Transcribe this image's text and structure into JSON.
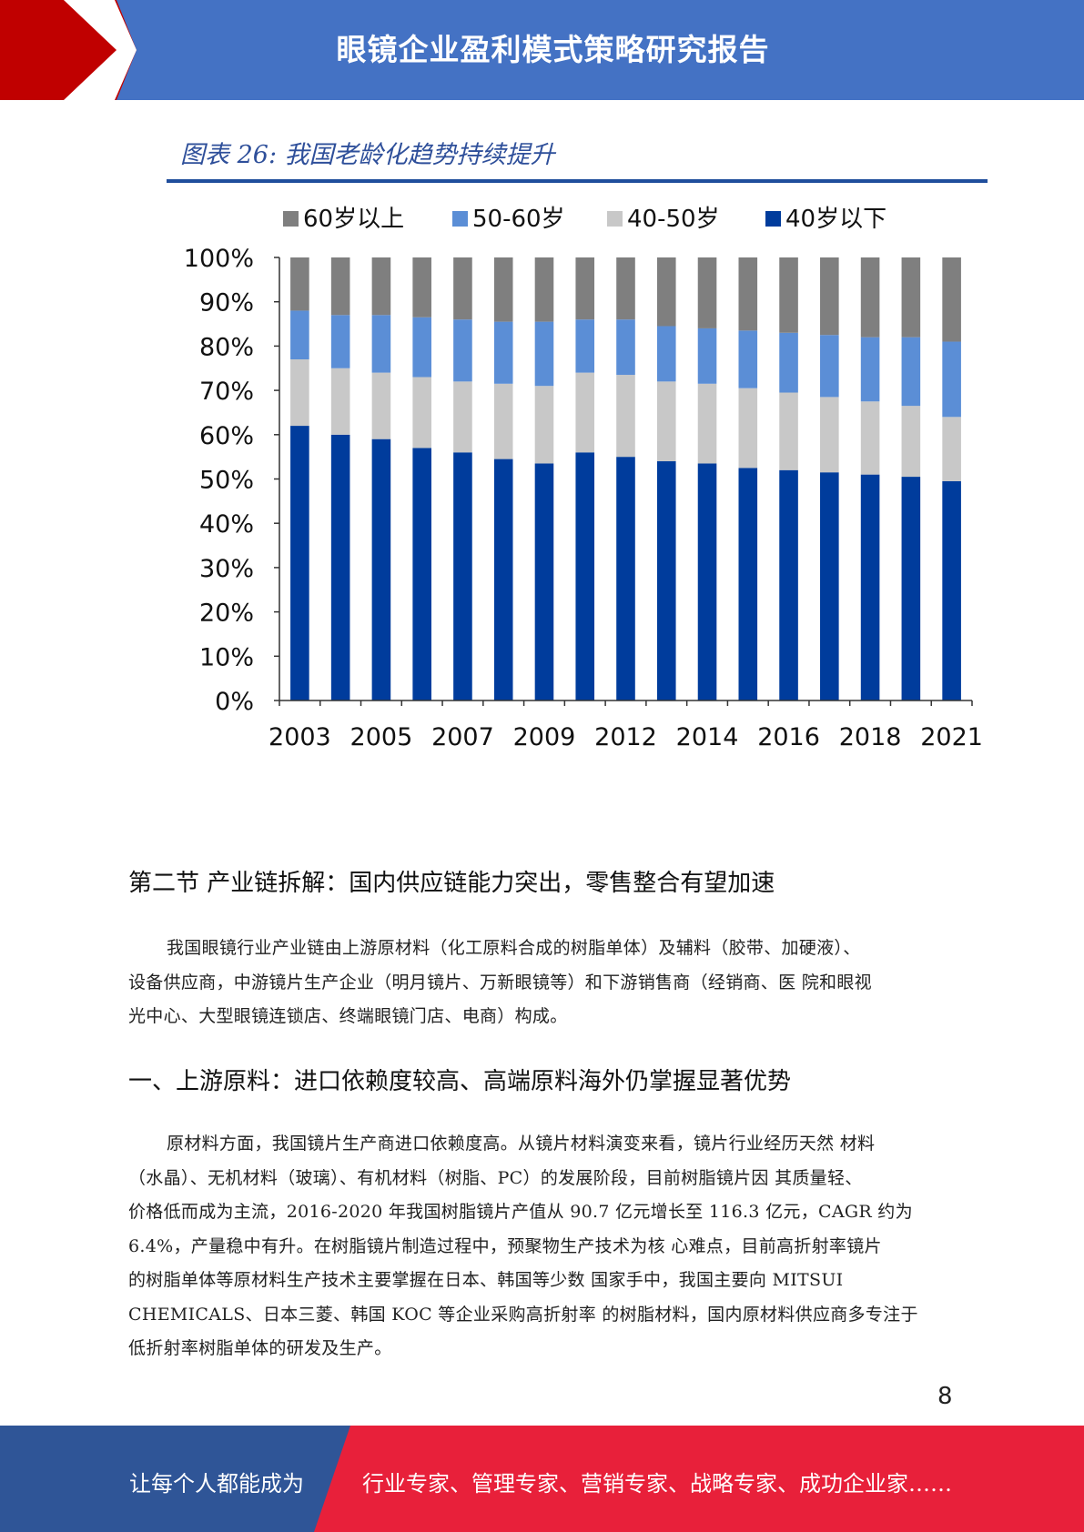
{
  "header": {
    "title": "眼镜企业盈利模式策略研究报告"
  },
  "figure": {
    "title": "图表 26:  我国老龄化趋势持续提升"
  },
  "chart_data": {
    "type": "bar",
    "stacked": true,
    "x": [
      "2003",
      "2004",
      "2005",
      "2006",
      "2007",
      "2008",
      "2009",
      "2010",
      "2012",
      "2013",
      "2014",
      "2015",
      "2016",
      "2017",
      "2018",
      "2019",
      "2021"
    ],
    "x_tick_labels": [
      "2003",
      "2005",
      "2007",
      "2009",
      "2012",
      "2014",
      "2016",
      "2018",
      "2021"
    ],
    "y_ticks": [
      "0%",
      "10%",
      "20%",
      "30%",
      "40%",
      "50%",
      "60%",
      "70%",
      "80%",
      "90%",
      "100%"
    ],
    "ylim": [
      0,
      100
    ],
    "legend_position": "top",
    "series": [
      {
        "name": "40岁以下",
        "color": "#003c9c",
        "values": [
          62,
          60,
          59,
          57,
          56,
          54.5,
          53.5,
          56,
          55,
          54,
          53.5,
          52.5,
          52,
          51.5,
          51,
          50.5,
          49.5
        ]
      },
      {
        "name": "40-50岁",
        "color": "#c8c8c8",
        "values": [
          15,
          15,
          15,
          16,
          16,
          17,
          17.5,
          18,
          18.5,
          18,
          18,
          18,
          17.5,
          17,
          16.5,
          16,
          14.5
        ]
      },
      {
        "name": "50-60岁",
        "color": "#5b8ed6",
        "values": [
          11,
          12,
          13,
          13.5,
          14,
          14,
          14.5,
          12,
          12.5,
          12.5,
          12.5,
          13,
          13.5,
          14,
          14.5,
          15.5,
          17
        ]
      },
      {
        "name": "60岁以上",
        "color": "#7f7f7f",
        "values": [
          12,
          13,
          13,
          13.5,
          14,
          14.5,
          14.5,
          14,
          14,
          15.5,
          16,
          16.5,
          17,
          17.5,
          18,
          18,
          19
        ]
      }
    ],
    "legend_order": [
      "60岁以上",
      "50-60岁",
      "40-50岁",
      "40岁以下"
    ]
  },
  "section": {
    "heading": "第二节 产业链拆解：国内供应链能力突出，零售整合有望加速"
  },
  "paragraph1": {
    "lines": [
      "我国眼镜行业产业链由上游原材料（化工原料合成的树脂单体）及辅料（胶带、加硬液）、",
      "设备供应商，中游镜片生产企业（明月镜片、万新眼镜等）和下游销售商（经销商、医 院和眼视",
      "光中心、大型眼镜连锁店、终端眼镜门店、电商）构成。"
    ]
  },
  "subsection": {
    "heading": "一、上游原料：进口依赖度较高、高端原料海外仍掌握显著优势"
  },
  "paragraph2": {
    "lines": [
      "原材料方面，我国镜片生产商进口依赖度高。从镜片材料演变来看，镜片行业经历天然 材料",
      "（水晶）、无机材料（玻璃）、有机材料（树脂、PC）的发展阶段，目前树脂镜片因 其质量轻、",
      "价格低而成为主流，2016-2020 年我国树脂镜片产值从 90.7 亿元增长至 116.3 亿元，CAGR 约为",
      "6.4%，产量稳中有升。在树脂镜片制造过程中，预聚物生产技术为核 心难点，目前高折射率镜片",
      "的树脂单体等原材料生产技术主要掌握在日本、韩国等少数 国家手中，我国主要向 MITSUI",
      "CHEMICALS、日本三菱、韩国 KOC 等企业采购高折射率 的树脂材料，国内原材料供应商多专注于",
      "低折射率树脂单体的研发及生产。"
    ]
  },
  "page_number": "8",
  "footer": {
    "left_text": "让每个人都能成为",
    "right_text": "行业专家、管理专家、营销专家、战略专家、成功企业家……"
  }
}
